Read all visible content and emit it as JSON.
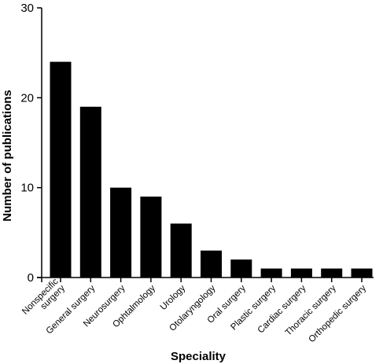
{
  "chart_data": {
    "type": "bar",
    "title": "",
    "xlabel": "Speciality",
    "ylabel": "Number of publications",
    "ylim": [
      0,
      30
    ],
    "yticks": [
      0,
      10,
      20,
      30
    ],
    "categories": [
      [
        "Nonspecific",
        "surgery"
      ],
      [
        "General surgery"
      ],
      [
        "Neurosurgery"
      ],
      [
        "Ophtalmology"
      ],
      [
        "Urology"
      ],
      [
        "Otolaryngology"
      ],
      [
        "Oral surgery"
      ],
      [
        "Plastic surgery"
      ],
      [
        "Cardiac surgery"
      ],
      [
        "Thoracic surgery"
      ],
      [
        "Orthopedic surgery"
      ]
    ],
    "values": [
      24,
      19,
      10,
      9,
      6,
      3,
      2,
      1,
      1,
      1,
      1
    ],
    "bar_color": "#000000",
    "grid": false,
    "legend": "none"
  }
}
